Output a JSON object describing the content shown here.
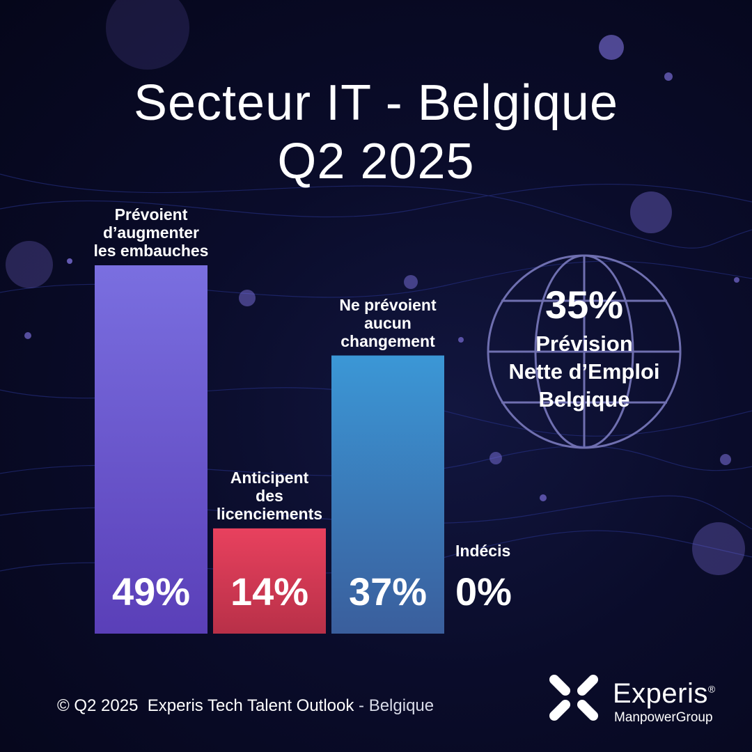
{
  "title_line1": "Secteur IT - Belgique",
  "title_line2": "Q2 2025",
  "chart_data": {
    "type": "bar",
    "categories": [
      "Prévoient d’augmenter les embauches",
      "Anticipent des licenciements",
      "Ne prévoient aucun changement",
      "Indécis"
    ],
    "values": [
      49,
      14,
      37,
      0
    ],
    "value_labels": [
      "49%",
      "14%",
      "37%",
      "0%"
    ],
    "category_lines": [
      [
        "Prévoient",
        "d’augmenter",
        "les embauches"
      ],
      [
        "Anticipent",
        "des",
        "licenciements"
      ],
      [
        "Ne prévoient",
        "aucun",
        "changement"
      ],
      [
        "Indécis"
      ]
    ],
    "colors": [
      [
        "#7a6fe0",
        "#5a3fb8"
      ],
      [
        "#e8415e",
        "#b83048"
      ],
      [
        "#3b97d6",
        "#3a5e9c"
      ],
      [
        "#ffffff",
        "#ffffff"
      ]
    ],
    "ylim": [
      0,
      100
    ],
    "grid": false,
    "legend": "none"
  },
  "globe": {
    "value": "35%",
    "line1": "Prévision",
    "line2": "Nette d’Emploi",
    "line3": "Belgique"
  },
  "footer": {
    "main": "© Q2 2025  Experis Tech Talent Outlook",
    "suffix": " - Belgique"
  },
  "logo": {
    "name": "Experis",
    "registered": "®",
    "sub": "ManpowerGroup"
  }
}
